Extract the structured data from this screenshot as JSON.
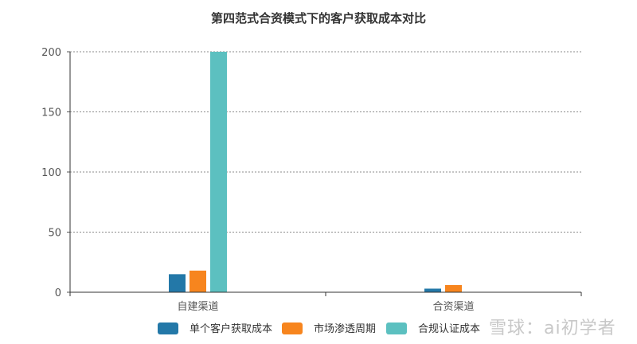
{
  "chart_data": {
    "type": "bar",
    "title": "第四范式合资模式下的客户获取成本对比",
    "xlabel": "",
    "ylabel": "",
    "categories": [
      "自建渠道",
      "合资渠道"
    ],
    "series": [
      {
        "name": "单个客户获取成本",
        "color": "#2378a8",
        "values": [
          15,
          3
        ]
      },
      {
        "name": "市场渗透周期",
        "color": "#f7851e",
        "values": [
          18,
          6
        ]
      },
      {
        "name": "合规认证成本",
        "color": "#5cc0c0",
        "values": [
          200,
          0
        ]
      }
    ],
    "ylim": [
      0,
      200
    ],
    "yticks": [
      0,
      50,
      100,
      150,
      200
    ],
    "grid": true,
    "grid_style": "dotted",
    "legend_position": "bottom"
  },
  "watermark": "雪球：ai初学者"
}
